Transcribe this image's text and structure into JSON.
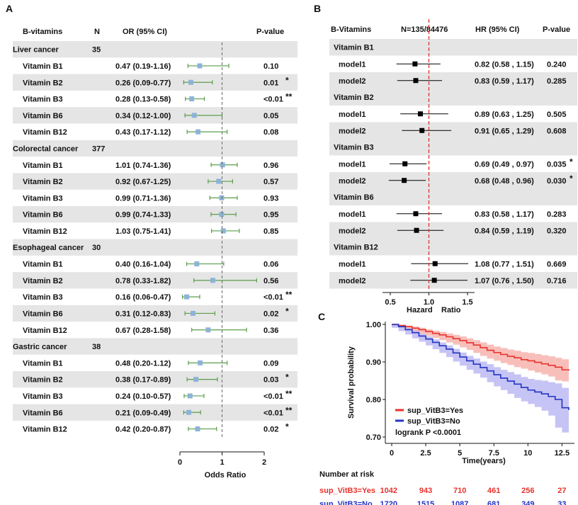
{
  "chart_data": [
    {
      "panel": "A",
      "type": "forest",
      "columns": [
        "B-vitamins",
        "N",
        "OR (95% CI)",
        "P-value"
      ],
      "xaxis": {
        "label": "Odds Ratio",
        "ticks": [
          0,
          1,
          2
        ],
        "range": [
          0,
          2
        ],
        "reference": 1
      },
      "colors": {
        "marker": "#8db3d6",
        "ci": "#5a9e4a",
        "stripe": "#e5e5e5",
        "ref": "#666666"
      },
      "groups": [
        {
          "name": "Liver cancer",
          "n": "35",
          "rows": [
            {
              "label": "Vitamin B1",
              "or": 0.47,
              "lo": 0.19,
              "hi": 1.16,
              "text": "0.47 (0.19-1.16)",
              "p": "0.10",
              "sig": ""
            },
            {
              "label": "Vitamin B2",
              "or": 0.26,
              "lo": 0.09,
              "hi": 0.77,
              "text": "0.26 (0.09-0.77)",
              "p": "0.01",
              "sig": "*"
            },
            {
              "label": "Vitamin B3",
              "or": 0.28,
              "lo": 0.13,
              "hi": 0.58,
              "text": "0.28 (0.13-0.58)",
              "p": "<0.01",
              "sig": "**"
            },
            {
              "label": "Vitamin B6",
              "or": 0.34,
              "lo": 0.12,
              "hi": 1.0,
              "text": "0.34 (0.12-1.00)",
              "p": "0.05",
              "sig": ""
            },
            {
              "label": "Vitamin B12",
              "or": 0.43,
              "lo": 0.17,
              "hi": 1.12,
              "text": "0.43 (0.17-1.12)",
              "p": "0.08",
              "sig": ""
            }
          ]
        },
        {
          "name": "Colorectal cancer",
          "n": "377",
          "rows": [
            {
              "label": "Vitamin B1",
              "or": 1.01,
              "lo": 0.74,
              "hi": 1.36,
              "text": "1.01 (0.74-1.36)",
              "p": "0.96",
              "sig": ""
            },
            {
              "label": "Vitamin B2",
              "or": 0.92,
              "lo": 0.67,
              "hi": 1.25,
              "text": "0.92 (0.67-1.25)",
              "p": "0.57",
              "sig": ""
            },
            {
              "label": "Vitamin B3",
              "or": 0.99,
              "lo": 0.71,
              "hi": 1.36,
              "text": "0.99 (0.71-1.36)",
              "p": "0.93",
              "sig": ""
            },
            {
              "label": "Vitamin B6",
              "or": 0.99,
              "lo": 0.74,
              "hi": 1.33,
              "text": "0.99 (0.74-1.33)",
              "p": "0.95",
              "sig": ""
            },
            {
              "label": "Vitamin B12",
              "or": 1.03,
              "lo": 0.75,
              "hi": 1.41,
              "text": "1.03 (0.75-1.41)",
              "p": "0.85",
              "sig": ""
            }
          ]
        },
        {
          "name": "Esophageal cancer",
          "n": "30",
          "rows": [
            {
              "label": "Vitamin B1",
              "or": 0.4,
              "lo": 0.16,
              "hi": 1.04,
              "text": "0.40 (0.16-1.04)",
              "p": "0.06",
              "sig": ""
            },
            {
              "label": "Vitamin B2",
              "or": 0.78,
              "lo": 0.33,
              "hi": 1.82,
              "text": "0.78 (0.33-1.82)",
              "p": "0.56",
              "sig": ""
            },
            {
              "label": "Vitamin B3",
              "or": 0.16,
              "lo": 0.06,
              "hi": 0.47,
              "text": "0.16 (0.06-0.47)",
              "p": "<0.01",
              "sig": "**"
            },
            {
              "label": "Vitamin B6",
              "or": 0.31,
              "lo": 0.12,
              "hi": 0.83,
              "text": "0.31 (0.12-0.83)",
              "p": "0.02",
              "sig": "*"
            },
            {
              "label": "Vitamin B12",
              "or": 0.67,
              "lo": 0.28,
              "hi": 1.58,
              "text": "0.67 (0.28-1.58)",
              "p": "0.36",
              "sig": ""
            }
          ]
        },
        {
          "name": "Gastric cancer",
          "n": "38",
          "rows": [
            {
              "label": "Vitamin B1",
              "or": 0.48,
              "lo": 0.2,
              "hi": 1.12,
              "text": "0.48 (0.20-1.12)",
              "p": "0.09",
              "sig": ""
            },
            {
              "label": "Vitamin B2",
              "or": 0.38,
              "lo": 0.17,
              "hi": 0.89,
              "text": "0.38 (0.17-0.89)",
              "p": "0.03",
              "sig": "*"
            },
            {
              "label": "Vitamin B3",
              "or": 0.24,
              "lo": 0.1,
              "hi": 0.57,
              "text": "0.24 (0.10-0.57)",
              "p": "<0.01",
              "sig": "**"
            },
            {
              "label": "Vitamin B6",
              "or": 0.21,
              "lo": 0.09,
              "hi": 0.49,
              "text": "0.21 (0.09-0.49)",
              "p": "<0.01",
              "sig": "**"
            },
            {
              "label": "Vitamin B12",
              "or": 0.42,
              "lo": 0.2,
              "hi": 0.87,
              "text": "0.42 (0.20-0.87)",
              "p": "0.02",
              "sig": "*"
            }
          ]
        }
      ]
    },
    {
      "panel": "B",
      "type": "forest",
      "columns": [
        "B-Vitamins",
        "N=135/84476",
        "HR (95% CI)",
        "P-value"
      ],
      "xaxis": {
        "label_left": "Hazard",
        "label_right": "Ratio",
        "ticks": [
          0.5,
          1.0,
          1.5
        ],
        "tick_labels": [
          "0.5",
          "1.0",
          "1.5"
        ],
        "range": [
          0.5,
          1.5
        ],
        "reference": 1.0
      },
      "colors": {
        "marker": "#000000",
        "ci": "#000000",
        "stripe": "#e5e5e5",
        "ref": "#e03030"
      },
      "groups": [
        {
          "name": "Vitamin B1",
          "rows": [
            {
              "label": "model1",
              "hr": 0.82,
              "lo": 0.58,
              "hi": 1.15,
              "text": "0.82 (0.58 , 1.15)",
              "p": "0.240",
              "sig": ""
            },
            {
              "label": "model2",
              "hr": 0.83,
              "lo": 0.59,
              "hi": 1.17,
              "text": "0.83 (0.59 , 1.17)",
              "p": "0.285",
              "sig": ""
            }
          ]
        },
        {
          "name": "Vitamin B2",
          "rows": [
            {
              "label": "model1",
              "hr": 0.89,
              "lo": 0.63,
              "hi": 1.25,
              "text": "0.89 (0.63 , 1.25)",
              "p": "0.505",
              "sig": ""
            },
            {
              "label": "model2",
              "hr": 0.91,
              "lo": 0.65,
              "hi": 1.29,
              "text": "0.91 (0.65 , 1.29)",
              "p": "0.608",
              "sig": ""
            }
          ]
        },
        {
          "name": "Vitamin B3",
          "rows": [
            {
              "label": "model1",
              "hr": 0.69,
              "lo": 0.49,
              "hi": 0.97,
              "text": "0.69 (0.49 , 0.97)",
              "p": "0.035",
              "sig": "*"
            },
            {
              "label": "model2",
              "hr": 0.68,
              "lo": 0.48,
              "hi": 0.96,
              "text": "0.68 (0.48 , 0.96)",
              "p": "0.030",
              "sig": "*"
            }
          ]
        },
        {
          "name": "Vitamin B6",
          "rows": [
            {
              "label": "model1",
              "hr": 0.83,
              "lo": 0.58,
              "hi": 1.17,
              "text": "0.83 (0.58 , 1.17)",
              "p": "0.283",
              "sig": ""
            },
            {
              "label": "model2",
              "hr": 0.84,
              "lo": 0.59,
              "hi": 1.19,
              "text": "0.84 (0.59 , 1.19)",
              "p": "0.320",
              "sig": ""
            }
          ]
        },
        {
          "name": "Vitamin B12",
          "rows": [
            {
              "label": "model1",
              "hr": 1.08,
              "lo": 0.77,
              "hi": 1.51,
              "text": "1.08 (0.77 , 1.51)",
              "p": "0.669",
              "sig": ""
            },
            {
              "label": "model2",
              "hr": 1.07,
              "lo": 0.76,
              "hi": 1.5,
              "text": "1.07 (0.76 , 1.50)",
              "p": "0.716",
              "sig": ""
            }
          ]
        }
      ]
    },
    {
      "panel": "C",
      "type": "line",
      "ylabel": "Survival probability",
      "xlabel": "Time(years)",
      "xlim": [
        0,
        13
      ],
      "ylim": [
        0.7,
        1.0
      ],
      "xticks": [
        0,
        2.5,
        5,
        7.5,
        10,
        12.5
      ],
      "xtick_labels": [
        "0",
        "2.5",
        "5",
        "7.5",
        "10",
        "12.5"
      ],
      "yticks": [
        0.7,
        0.8,
        0.9,
        1.0
      ],
      "ytick_labels": [
        "0.70",
        "0.80",
        "0.90",
        "1.00"
      ],
      "annotation": "logrank P <0.0001",
      "series": [
        {
          "name": "sup_VitB3=Yes",
          "color": "#e8322d",
          "band_color": "#f6a9a3",
          "x": [
            0,
            0.5,
            1,
            1.5,
            2,
            2.5,
            3,
            3.5,
            4,
            4.5,
            5,
            5.5,
            6,
            6.5,
            7,
            7.5,
            8,
            8.5,
            9,
            9.5,
            10,
            10.5,
            11,
            11.5,
            12,
            12.5,
            13
          ],
          "y": [
            1.0,
            0.997,
            0.994,
            0.99,
            0.986,
            0.981,
            0.976,
            0.972,
            0.967,
            0.962,
            0.957,
            0.951,
            0.945,
            0.938,
            0.931,
            0.925,
            0.92,
            0.915,
            0.911,
            0.906,
            0.903,
            0.899,
            0.895,
            0.891,
            0.886,
            0.879,
            0.877
          ],
          "lo": [
            1.0,
            0.995,
            0.991,
            0.986,
            0.981,
            0.975,
            0.969,
            0.964,
            0.958,
            0.952,
            0.946,
            0.939,
            0.932,
            0.924,
            0.916,
            0.909,
            0.903,
            0.897,
            0.892,
            0.886,
            0.882,
            0.877,
            0.872,
            0.867,
            0.861,
            0.851,
            0.848
          ],
          "hi": [
            1.0,
            0.999,
            0.997,
            0.994,
            0.991,
            0.987,
            0.983,
            0.98,
            0.976,
            0.972,
            0.968,
            0.963,
            0.958,
            0.952,
            0.946,
            0.941,
            0.937,
            0.933,
            0.93,
            0.926,
            0.924,
            0.921,
            0.918,
            0.915,
            0.911,
            0.907,
            0.906
          ]
        },
        {
          "name": "sup_VitB3=No",
          "color": "#2433c4",
          "band_color": "#b3b0f2",
          "x": [
            0,
            0.5,
            1,
            1.5,
            2,
            2.5,
            3,
            3.5,
            4,
            4.5,
            5,
            5.5,
            6,
            6.5,
            7,
            7.5,
            8,
            8.5,
            9,
            9.5,
            10,
            10.5,
            11,
            11.5,
            12,
            12.5,
            13
          ],
          "y": [
            1.0,
            0.994,
            0.986,
            0.978,
            0.969,
            0.961,
            0.952,
            0.943,
            0.934,
            0.924,
            0.913,
            0.903,
            0.894,
            0.885,
            0.876,
            0.866,
            0.857,
            0.849,
            0.841,
            0.832,
            0.825,
            0.82,
            0.815,
            0.808,
            0.8,
            0.778,
            0.772
          ],
          "lo": [
            1.0,
            0.991,
            0.982,
            0.973,
            0.963,
            0.954,
            0.944,
            0.934,
            0.924,
            0.913,
            0.901,
            0.89,
            0.879,
            0.869,
            0.858,
            0.846,
            0.835,
            0.825,
            0.815,
            0.804,
            0.795,
            0.788,
            0.78,
            0.77,
            0.757,
            0.725,
            0.712
          ],
          "hi": [
            1.0,
            0.997,
            0.99,
            0.983,
            0.975,
            0.968,
            0.96,
            0.952,
            0.944,
            0.935,
            0.925,
            0.916,
            0.909,
            0.901,
            0.894,
            0.886,
            0.879,
            0.873,
            0.867,
            0.86,
            0.855,
            0.852,
            0.85,
            0.846,
            0.843,
            0.831,
            0.83
          ]
        }
      ],
      "risk_table": {
        "title": "Number at risk",
        "times": [
          0,
          2.5,
          5,
          7.5,
          10,
          12.5
        ],
        "rows": [
          {
            "name": "sup_VitB3=Yes",
            "color": "#e8322d",
            "values": [
              "1042",
              "943",
              "710",
              "461",
              "256",
              "27"
            ]
          },
          {
            "name": "sup_VitB3=No",
            "color": "#2433c4",
            "values": [
              "1720",
              "1515",
              "1087",
              "681",
              "349",
              "33"
            ]
          }
        ]
      }
    }
  ]
}
